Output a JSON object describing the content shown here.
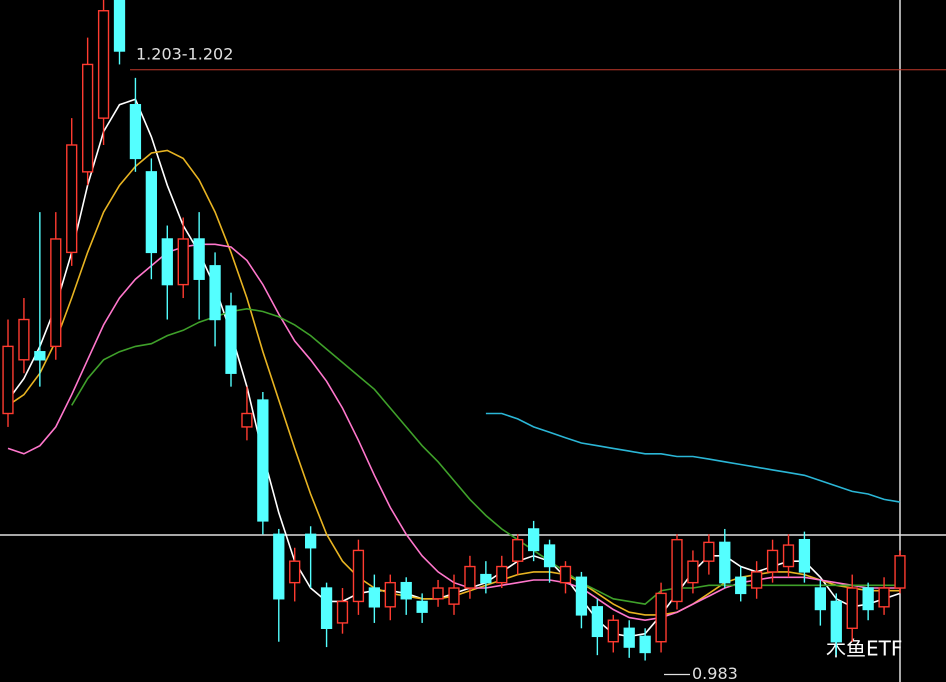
{
  "chart_data": {
    "type": "candlestick",
    "ylim": [
      0.975,
      1.229
    ],
    "up_color": "#ff3b30",
    "down_color": "#54ffff",
    "open": [
      1.075,
      1.095,
      1.098,
      1.1,
      1.135,
      1.165,
      1.185,
      1.229,
      1.19,
      1.165,
      1.14,
      1.123,
      1.14,
      1.13,
      1.115,
      1.07,
      1.08,
      1.03,
      1.012,
      1.03,
      1.01,
      0.997,
      1.005,
      1.01,
      1.003,
      1.012,
      1.005,
      1.006,
      1.004,
      1.01,
      1.015,
      1.012,
      1.02,
      1.032,
      1.026,
      1.012,
      1.014,
      1.003,
      0.99,
      0.995,
      0.992,
      0.99,
      1.005,
      1.012,
      1.02,
      1.027,
      1.014,
      1.01,
      1.016,
      1.018,
      1.028,
      1.01,
      1.005,
      0.995,
      1.01,
      1.003,
      1.01
    ],
    "high": [
      1.11,
      1.118,
      1.15,
      1.15,
      1.185,
      1.215,
      1.229,
      1.229,
      1.2,
      1.17,
      1.145,
      1.148,
      1.15,
      1.135,
      1.12,
      1.085,
      1.083,
      1.032,
      1.025,
      1.033,
      1.012,
      1.01,
      1.028,
      1.015,
      1.015,
      1.014,
      1.008,
      1.013,
      1.015,
      1.022,
      1.02,
      1.022,
      1.03,
      1.035,
      1.028,
      1.02,
      1.016,
      1.006,
      1.0,
      0.998,
      0.995,
      1.012,
      1.03,
      1.024,
      1.03,
      1.032,
      1.018,
      1.02,
      1.028,
      1.03,
      1.031,
      1.013,
      1.008,
      1.015,
      1.012,
      1.014,
      1.024
    ],
    "low": [
      1.07,
      1.09,
      1.085,
      1.095,
      1.13,
      1.16,
      1.175,
      1.205,
      1.165,
      1.125,
      1.11,
      1.118,
      1.11,
      1.1,
      1.085,
      1.065,
      1.03,
      0.99,
      1.005,
      1.01,
      0.988,
      0.993,
      1.0,
      0.997,
      0.998,
      1.0,
      0.997,
      1.003,
      1.0,
      1.006,
      1.008,
      1.01,
      1.015,
      1.02,
      1.012,
      1.008,
      0.995,
      0.985,
      0.986,
      0.984,
      0.983,
      0.986,
      1.002,
      1.008,
      1.015,
      1.01,
      1.005,
      1.006,
      1.012,
      1.014,
      1.012,
      0.996,
      0.985,
      0.99,
      0.998,
      1.0,
      1.008
    ],
    "close": [
      1.1,
      1.11,
      1.095,
      1.14,
      1.175,
      1.205,
      1.225,
      1.21,
      1.17,
      1.135,
      1.123,
      1.14,
      1.125,
      1.11,
      1.09,
      1.075,
      1.035,
      1.006,
      1.02,
      1.025,
      0.995,
      1.005,
      1.024,
      1.003,
      1.012,
      1.006,
      1.001,
      1.01,
      1.01,
      1.018,
      1.012,
      1.018,
      1.028,
      1.024,
      1.018,
      1.018,
      1.0,
      0.992,
      0.998,
      0.988,
      0.986,
      1.008,
      1.028,
      1.02,
      1.027,
      1.012,
      1.008,
      1.016,
      1.024,
      1.026,
      1.016,
      1.002,
      0.99,
      1.01,
      1.002,
      1.01,
      1.022
    ],
    "series": [
      {
        "color": "#ffffff",
        "values": [
          1.08,
          1.088,
          1.1,
          1.115,
          1.135,
          1.16,
          1.18,
          1.19,
          1.192,
          1.178,
          1.16,
          1.145,
          1.135,
          1.122,
          1.105,
          1.085,
          1.06,
          1.038,
          1.02,
          1.01,
          1.005,
          1.005,
          1.008,
          1.009,
          1.009,
          1.008,
          1.006,
          1.006,
          1.008,
          1.01,
          1.012,
          1.016,
          1.02,
          1.022,
          1.02,
          1.014,
          1.006,
          0.998,
          0.993,
          0.992,
          0.993,
          1.0,
          1.008,
          1.016,
          1.022,
          1.022,
          1.018,
          1.016,
          1.018,
          1.02,
          1.02,
          1.014,
          1.006,
          1.003,
          1.004,
          1.006,
          1.008
        ]
      },
      {
        "color": "#e8b422",
        "values": [
          1.078,
          1.082,
          1.09,
          1.102,
          1.118,
          1.135,
          1.15,
          1.16,
          1.167,
          1.172,
          1.173,
          1.17,
          1.162,
          1.15,
          1.135,
          1.118,
          1.098,
          1.08,
          1.062,
          1.045,
          1.03,
          1.02,
          1.014,
          1.01,
          1.008,
          1.007,
          1.006,
          1.006,
          1.007,
          1.009,
          1.011,
          1.013,
          1.015,
          1.016,
          1.016,
          1.015,
          1.012,
          1.008,
          1.004,
          1.001,
          1.0,
          1.0,
          1.001,
          1.004,
          1.008,
          1.012,
          1.014,
          1.015,
          1.016,
          1.016,
          1.015,
          1.013,
          1.011,
          1.01,
          1.009,
          1.009,
          1.009
        ]
      },
      {
        "color": "#ff77cc",
        "values": [
          1.062,
          1.06,
          1.063,
          1.07,
          1.082,
          1.095,
          1.108,
          1.118,
          1.125,
          1.13,
          1.135,
          1.137,
          1.138,
          1.138,
          1.137,
          1.132,
          1.123,
          1.112,
          1.102,
          1.095,
          1.087,
          1.077,
          1.065,
          1.052,
          1.04,
          1.03,
          1.022,
          1.016,
          1.012,
          1.01,
          1.01,
          1.011,
          1.012,
          1.013,
          1.013,
          1.012,
          1.01,
          1.006,
          1.002,
          0.999,
          0.998,
          0.999,
          1.001,
          1.004,
          1.007,
          1.01,
          1.012,
          1.013,
          1.014,
          1.014,
          1.014,
          1.013,
          1.012,
          1.011,
          1.01,
          1.01,
          1.01
        ]
      },
      {
        "color": "#3fa02a",
        "values": [
          null,
          null,
          null,
          null,
          1.078,
          1.088,
          1.095,
          1.098,
          1.1,
          1.101,
          1.104,
          1.106,
          1.109,
          1.111,
          1.113,
          1.114,
          1.113,
          1.111,
          1.108,
          1.104,
          1.099,
          1.094,
          1.089,
          1.084,
          1.077,
          1.07,
          1.063,
          1.057,
          1.05,
          1.043,
          1.037,
          1.032,
          1.028,
          1.024,
          1.02,
          1.016,
          1.012,
          1.009,
          1.006,
          1.005,
          1.004,
          1.009,
          1.01,
          1.01,
          1.011,
          1.011,
          1.011,
          1.011,
          1.011,
          1.011,
          1.011,
          1.011,
          1.011,
          1.011,
          1.011,
          1.011,
          1.011
        ]
      },
      {
        "color": "#2bb6d6",
        "values": [
          null,
          null,
          null,
          null,
          null,
          null,
          null,
          null,
          null,
          null,
          null,
          null,
          null,
          null,
          null,
          null,
          null,
          null,
          null,
          null,
          null,
          null,
          null,
          null,
          null,
          null,
          null,
          null,
          null,
          null,
          1.075,
          1.075,
          1.073,
          1.07,
          1.068,
          1.066,
          1.064,
          1.063,
          1.062,
          1.061,
          1.06,
          1.06,
          1.059,
          1.059,
          1.058,
          1.057,
          1.056,
          1.055,
          1.054,
          1.053,
          1.052,
          1.05,
          1.048,
          1.046,
          1.045,
          1.043,
          1.042
        ]
      }
    ],
    "annotations": [
      {
        "text": "1.203-1.202",
        "value": 1.203,
        "color": "#c0392b"
      },
      {
        "text": "0.983",
        "value": 0.983
      }
    ],
    "watermark": "木鱼ETF"
  }
}
